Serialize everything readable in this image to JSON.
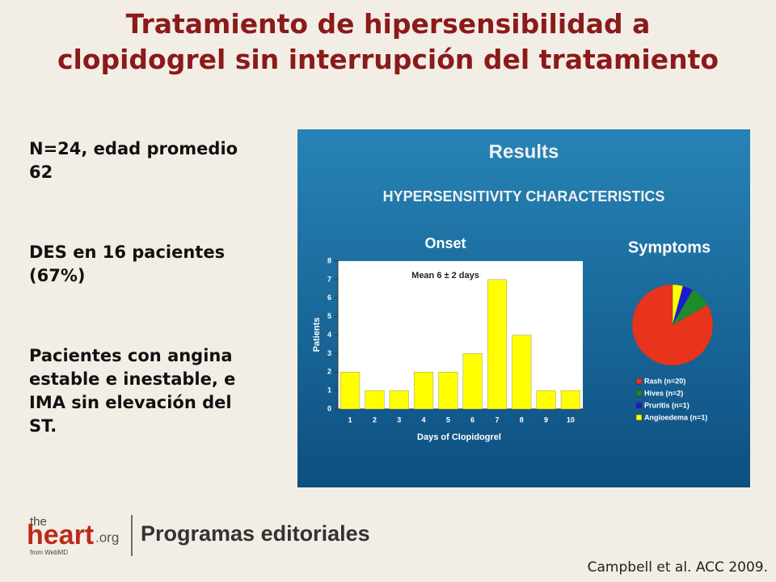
{
  "slide": {
    "title": "Tratamiento de hipersensibilidad a clopidogrel sin interrupción del tratamiento",
    "points": [
      "N=24, edad promedio 62",
      "DES en 16 pacientes (67%)",
      "Pacientes con angina estable e inestable, e IMA sin elevación del ST."
    ],
    "panel_title": "Results",
    "panel_subtitle": "HYPERSENSITIVITY CHARACTERISTICS",
    "logo": {
      "the": "the",
      "heart": "heart",
      "org": ".org",
      "from": "from WebMD",
      "program": "Programas editoriales"
    },
    "citation": "Campbell et al. ACC 2009."
  },
  "chart_data": [
    {
      "type": "bar",
      "title": "Onset",
      "x_label": "Days of Clopidogrel",
      "y_label": "Patients",
      "annotation": "Mean 6 ± 2 days",
      "categories": [
        "1",
        "2",
        "3",
        "4",
        "5",
        "6",
        "7",
        "8",
        "9",
        "10"
      ],
      "values": [
        2,
        1,
        1,
        2,
        2,
        3,
        7,
        4,
        1,
        1
      ],
      "color": "#ffff00",
      "ylim": [
        0,
        8
      ],
      "yticks": [
        0,
        1,
        2,
        3,
        4,
        5,
        6,
        7,
        8
      ]
    },
    {
      "type": "pie",
      "title": "Symptoms",
      "categories": [
        "Rash (n=20)",
        "Hives (n=2)",
        "Pruritis (n=1)",
        "Angioedema (n=1)"
      ],
      "values": [
        20,
        2,
        1,
        1
      ],
      "colors": [
        "#e8341c",
        "#1e8c2a",
        "#1a1ad0",
        "#ffff00"
      ]
    }
  ]
}
